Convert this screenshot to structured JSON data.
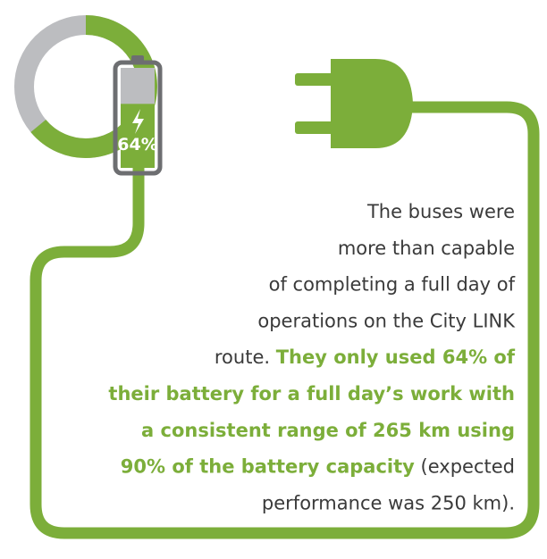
{
  "gauge": {
    "value": 64,
    "label": "64%"
  },
  "paragraph": [
    [
      {
        "text": "The buses were",
        "emphasis": false
      }
    ],
    [
      {
        "text": "more than capable",
        "emphasis": false
      }
    ],
    [
      {
        "text": "of completing a full day of",
        "emphasis": false
      }
    ],
    [
      {
        "text": "operations on the City LINK",
        "emphasis": false
      }
    ],
    [
      {
        "text": "route. ",
        "emphasis": false
      },
      {
        "text": "They only used 64% of",
        "emphasis": true
      }
    ],
    [
      {
        "text": "their battery for a full day’s work with",
        "emphasis": true
      }
    ],
    [
      {
        "text": "a consistent range of 265 km using",
        "emphasis": true
      }
    ],
    [
      {
        "text": "90% of the battery capacity",
        "emphasis": true
      },
      {
        "text": " (expected",
        "emphasis": false
      }
    ],
    [
      {
        "text": "performance was 250 km).",
        "emphasis": false
      }
    ]
  ]
}
